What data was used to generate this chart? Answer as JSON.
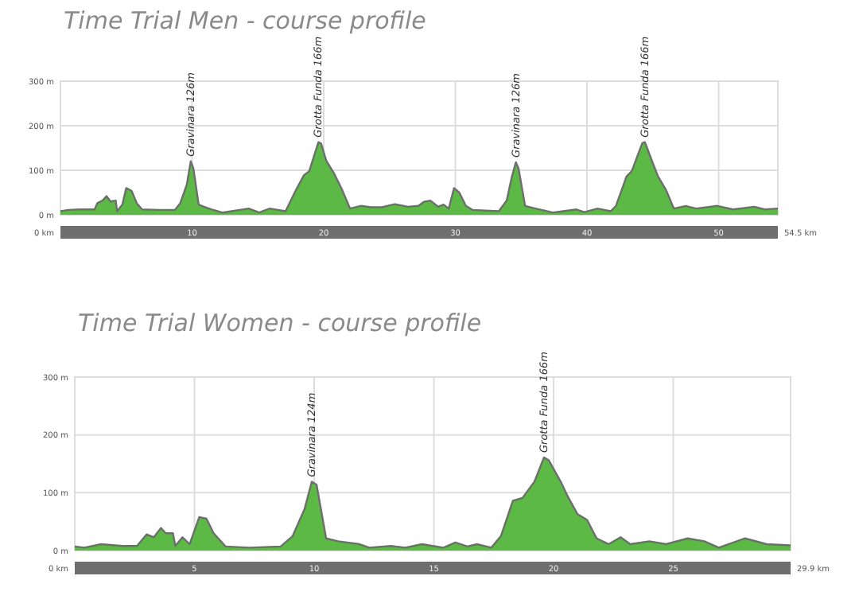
{
  "chart_data": [
    {
      "type": "area",
      "title": "Time Trial Men - course profile",
      "color": "#5db946",
      "xlim": [
        0,
        54.5
      ],
      "ylim": [
        0,
        300
      ],
      "xticks": [
        10,
        20,
        30,
        40,
        50
      ],
      "yticks": [
        {
          "value": 0,
          "label": "0 m"
        },
        {
          "value": 100,
          "label": "100 m"
        },
        {
          "value": 200,
          "label": "200 m"
        },
        {
          "value": 300,
          "label": "300 m"
        }
      ],
      "grid": true,
      "x": [
        0,
        0.6,
        1.4,
        2.6,
        2.8,
        3.2,
        3.5,
        3.8,
        4.2,
        4.3,
        4.7,
        5.0,
        5.4,
        5.8,
        6.2,
        7.5,
        8.7,
        9.1,
        9.6,
        9.9,
        10.1,
        10.5,
        10.9,
        11.5,
        12.3,
        14.3,
        15.1,
        15.9,
        17.1,
        17.9,
        18.5,
        18.9,
        19.6,
        19.8,
        20.2,
        20.8,
        21.4,
        22.0,
        22.8,
        23.6,
        24.4,
        25.4,
        26.4,
        27.2,
        27.6,
        28.1,
        28.7,
        29.1,
        29.5,
        29.9,
        30.3,
        30.8,
        31.3,
        33.3,
        33.9,
        34.3,
        34.6,
        34.8,
        35.3,
        36.1,
        37.4,
        39.2,
        39.8,
        40.8,
        41.8,
        42.2,
        43.0,
        43.4,
        44.2,
        44.4,
        45.0,
        45.4,
        46.0,
        46.6,
        47.5,
        48.3,
        49.9,
        51.1,
        52.7,
        53.5,
        54.5
      ],
      "values": [
        8,
        11,
        12,
        12,
        26,
        32,
        42,
        30,
        32,
        8,
        23,
        60,
        54,
        26,
        12,
        11,
        11,
        26,
        68,
        120,
        104,
        23,
        18,
        12,
        5,
        14,
        5,
        14,
        8,
        56,
        89,
        98,
        163,
        160,
        121,
        92,
        56,
        14,
        20,
        17,
        17,
        24,
        18,
        20,
        29,
        32,
        18,
        23,
        14,
        60,
        50,
        20,
        11,
        8,
        32,
        86,
        118,
        104,
        20,
        14,
        5,
        12,
        6,
        14,
        8,
        20,
        86,
        98,
        161,
        163,
        116,
        86,
        56,
        14,
        20,
        14,
        20,
        12,
        18,
        12,
        14
      ],
      "annotations": [
        "0 km",
        "54.5 km",
        {
          "text": "Gravinara 126m",
          "x": 9.9,
          "y": 120
        },
        {
          "text": "Grotta Funda 166m",
          "x": 19.6,
          "y": 163
        },
        {
          "text": "Gravinara 126m",
          "x": 34.6,
          "y": 118
        },
        {
          "text": "Grotta Funda 166m",
          "x": 44.4,
          "y": 163
        }
      ]
    },
    {
      "type": "area",
      "title": "Time Trial Women - course profile",
      "color": "#5db946",
      "xlim": [
        0,
        29.9
      ],
      "ylim": [
        0,
        300
      ],
      "xticks": [
        5,
        10,
        15,
        20,
        25
      ],
      "yticks": [
        {
          "value": 0,
          "label": "0 m"
        },
        {
          "value": 100,
          "label": "100 m"
        },
        {
          "value": 200,
          "label": "200 m"
        },
        {
          "value": 300,
          "label": "300 m"
        }
      ],
      "grid": true,
      "x": [
        0,
        0.4,
        1.1,
        2.0,
        2.6,
        3.0,
        3.3,
        3.6,
        3.8,
        4.1,
        4.2,
        4.5,
        4.8,
        5.2,
        5.5,
        5.8,
        6.3,
        7.3,
        8.6,
        9.1,
        9.6,
        9.9,
        10.1,
        10.5,
        11.0,
        11.9,
        12.3,
        13.2,
        13.8,
        14.5,
        15.4,
        15.9,
        16.4,
        16.8,
        17.4,
        17.8,
        18.3,
        18.7,
        19.2,
        19.6,
        19.8,
        20.3,
        20.6,
        21.0,
        21.4,
        21.8,
        22.3,
        22.8,
        23.2,
        24.0,
        24.7,
        25.6,
        26.3,
        26.9,
        28.0,
        28.9,
        29.9
      ],
      "values": [
        7,
        5,
        11,
        8,
        8,
        28,
        23,
        39,
        30,
        30,
        8,
        23,
        11,
        58,
        55,
        30,
        7,
        5,
        7,
        25,
        72,
        119,
        114,
        21,
        16,
        11,
        5,
        8,
        5,
        11,
        5,
        14,
        7,
        11,
        5,
        25,
        86,
        91,
        119,
        161,
        156,
        119,
        93,
        63,
        53,
        21,
        11,
        23,
        11,
        16,
        11,
        21,
        16,
        5,
        21,
        11,
        9
      ],
      "annotations": [
        "0 km",
        "29.9 km",
        {
          "text": "Gravinara 124m",
          "x": 9.9,
          "y": 119
        },
        {
          "text": "Grotta Funda 166m",
          "x": 19.6,
          "y": 161
        }
      ]
    }
  ]
}
